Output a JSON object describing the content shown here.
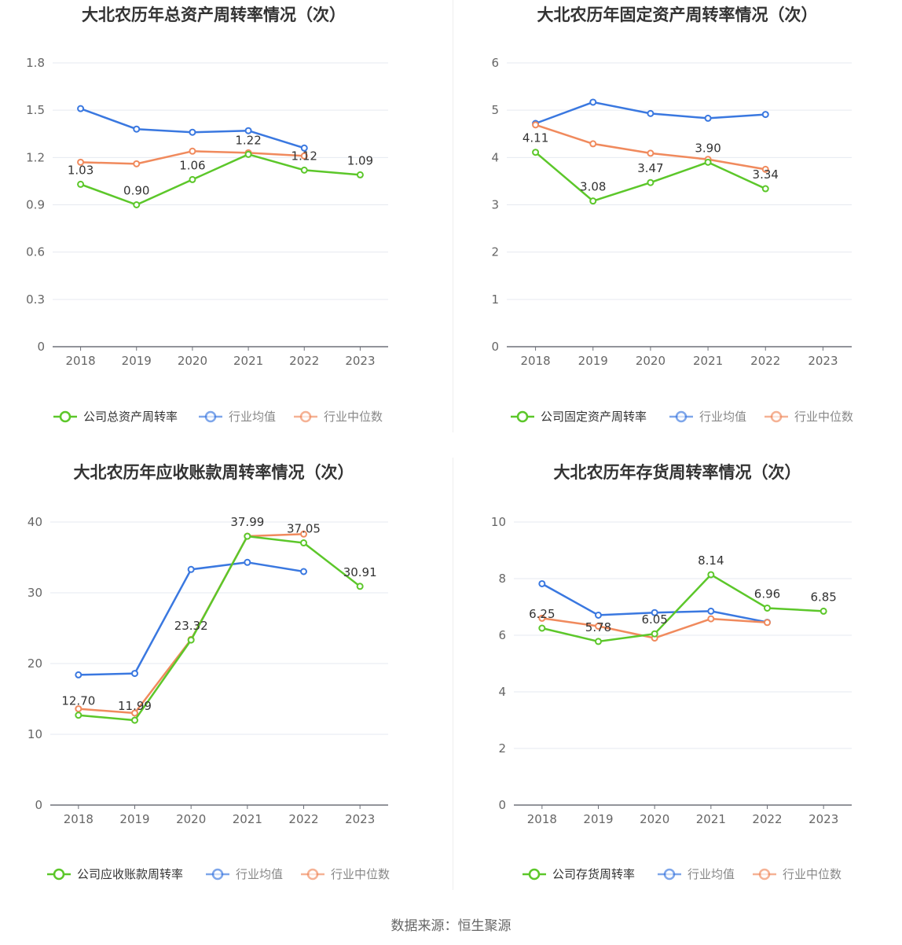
{
  "source": "数据来源：恒生聚源",
  "colors": {
    "company": "#5cc72a",
    "avg": "#3a78e0",
    "median": "#f08a5d",
    "axis": "#6e7079",
    "grid": "#e6e9f0",
    "tick": "#666666",
    "title": "#333333"
  },
  "chart_data": [
    {
      "type": "line",
      "title": "大北农历年总资产周转率情况（次）",
      "categories": [
        "2018",
        "2019",
        "2020",
        "2021",
        "2022",
        "2023"
      ],
      "ylim": [
        0,
        1.8
      ],
      "yticks": [
        "0",
        "0.3",
        "0.6",
        "0.9",
        "1.2",
        "1.5",
        "1.8"
      ],
      "legend_position": "bottom",
      "series": [
        {
          "name": "公司总资产周转率",
          "role": "company",
          "values": [
            1.03,
            0.9,
            1.06,
            1.22,
            1.12,
            1.09
          ],
          "labels": [
            "1.03",
            "0.90",
            "1.06",
            "1.22",
            "1.12",
            "1.09"
          ]
        },
        {
          "name": "行业均值",
          "role": "avg",
          "values": [
            1.51,
            1.38,
            1.36,
            1.37,
            1.26,
            null
          ]
        },
        {
          "name": "行业中位数",
          "role": "median",
          "values": [
            1.17,
            1.16,
            1.24,
            1.23,
            1.21,
            null
          ]
        }
      ]
    },
    {
      "type": "line",
      "title": "大北农历年固定资产周转率情况（次）",
      "categories": [
        "2018",
        "2019",
        "2020",
        "2021",
        "2022",
        "2023"
      ],
      "ylim": [
        0,
        6
      ],
      "yticks": [
        "0",
        "1",
        "2",
        "3",
        "4",
        "5",
        "6"
      ],
      "legend_position": "bottom",
      "series": [
        {
          "name": "公司固定资产周转率",
          "role": "company",
          "values": [
            4.11,
            3.08,
            3.47,
            3.9,
            3.34,
            null
          ],
          "labels": [
            "4.11",
            "3.08",
            "3.47",
            "3.90",
            "3.34",
            ""
          ]
        },
        {
          "name": "行业均值",
          "role": "avg",
          "values": [
            4.72,
            5.17,
            4.93,
            4.83,
            4.91,
            null
          ]
        },
        {
          "name": "行业中位数",
          "role": "median",
          "values": [
            4.69,
            4.29,
            4.09,
            3.96,
            3.75,
            null
          ]
        }
      ]
    },
    {
      "type": "line",
      "title": "大北农历年应收账款周转率情况（次）",
      "categories": [
        "2018",
        "2019",
        "2020",
        "2021",
        "2022",
        "2023"
      ],
      "ylim": [
        0,
        40
      ],
      "yticks": [
        "0",
        "10",
        "20",
        "30",
        "40"
      ],
      "legend_position": "bottom",
      "series": [
        {
          "name": "公司应收账款周转率",
          "role": "company",
          "values": [
            12.7,
            11.99,
            23.32,
            37.99,
            37.05,
            30.91
          ],
          "labels": [
            "12.70",
            "11.99",
            "23.32",
            "37.99",
            "37.05",
            "30.91"
          ]
        },
        {
          "name": "行业均值",
          "role": "avg",
          "values": [
            18.4,
            18.6,
            33.3,
            34.3,
            33.0,
            null
          ]
        },
        {
          "name": "行业中位数",
          "role": "median",
          "values": [
            13.6,
            13.0,
            23.4,
            38.0,
            38.3,
            null
          ]
        }
      ]
    },
    {
      "type": "line",
      "title": "大北农历年存货周转率情况（次）",
      "categories": [
        "2018",
        "2019",
        "2020",
        "2021",
        "2022",
        "2023"
      ],
      "ylim": [
        0,
        10
      ],
      "yticks": [
        "0",
        "2",
        "4",
        "6",
        "8",
        "10"
      ],
      "legend_position": "bottom",
      "series": [
        {
          "name": "公司存货周转率",
          "role": "company",
          "values": [
            6.25,
            5.78,
            6.05,
            8.14,
            6.96,
            6.85
          ],
          "labels": [
            "6.25",
            "5.78",
            "6.05",
            "8.14",
            "6.96",
            "6.85"
          ]
        },
        {
          "name": "行业均值",
          "role": "avg",
          "values": [
            7.82,
            6.71,
            6.8,
            6.85,
            6.46,
            null
          ]
        },
        {
          "name": "行业中位数",
          "role": "median",
          "values": [
            6.6,
            6.32,
            5.9,
            6.58,
            6.45,
            null
          ]
        }
      ]
    }
  ]
}
